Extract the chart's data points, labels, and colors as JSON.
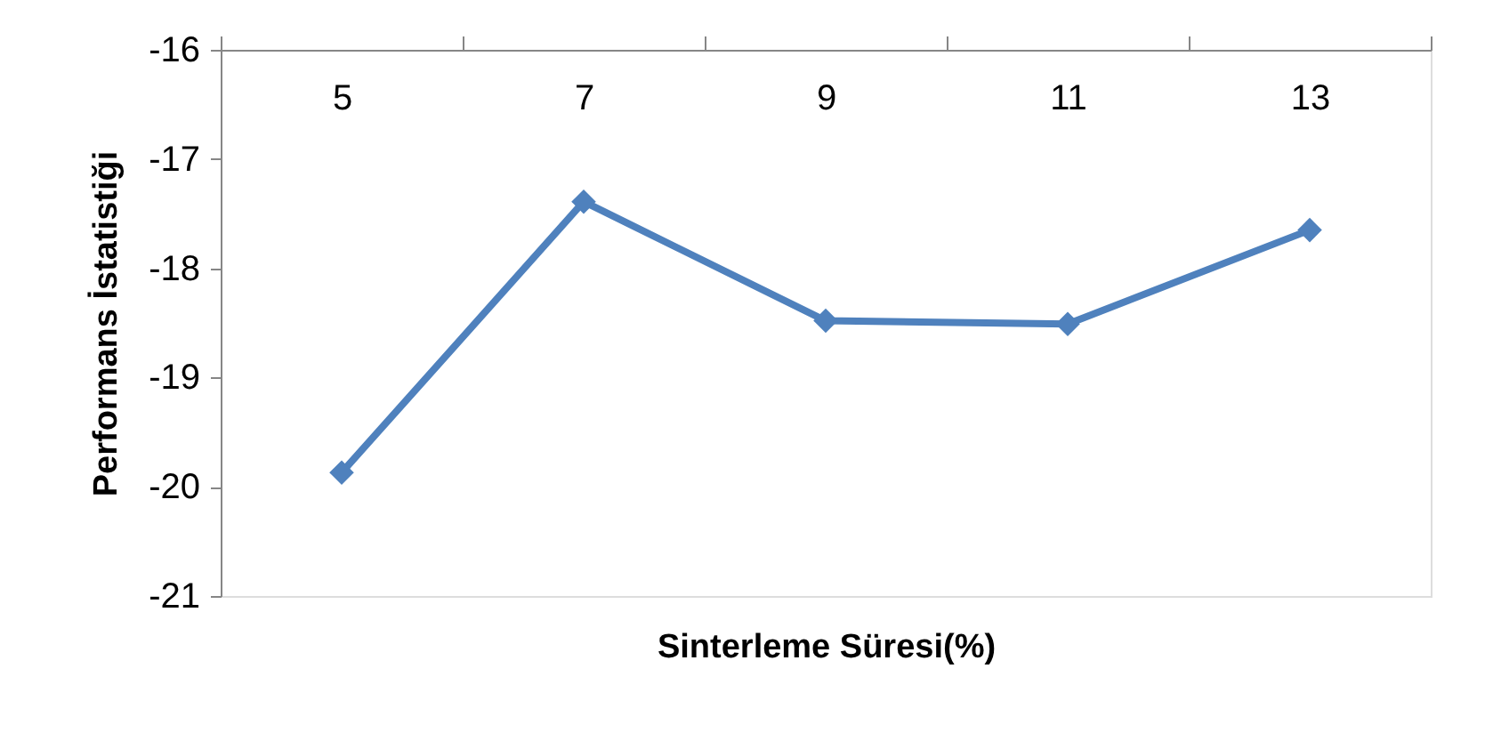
{
  "chart_data": {
    "type": "line",
    "xlabel": "Sinterleme Süresi(%)",
    "ylabel": "Performans İstatistiği",
    "categories": [
      "5",
      "7",
      "9",
      "11",
      "13"
    ],
    "series": [
      {
        "color": "#4f81bd",
        "values": [
          -19.87,
          -17.39,
          -18.48,
          -18.51,
          -17.65
        ]
      }
    ],
    "ylim": [
      -21,
      -16
    ],
    "yticks": [
      -21,
      -20,
      -19,
      -18,
      -17,
      -16
    ],
    "grid": false,
    "marker": "diamond",
    "line_style": "solid"
  }
}
